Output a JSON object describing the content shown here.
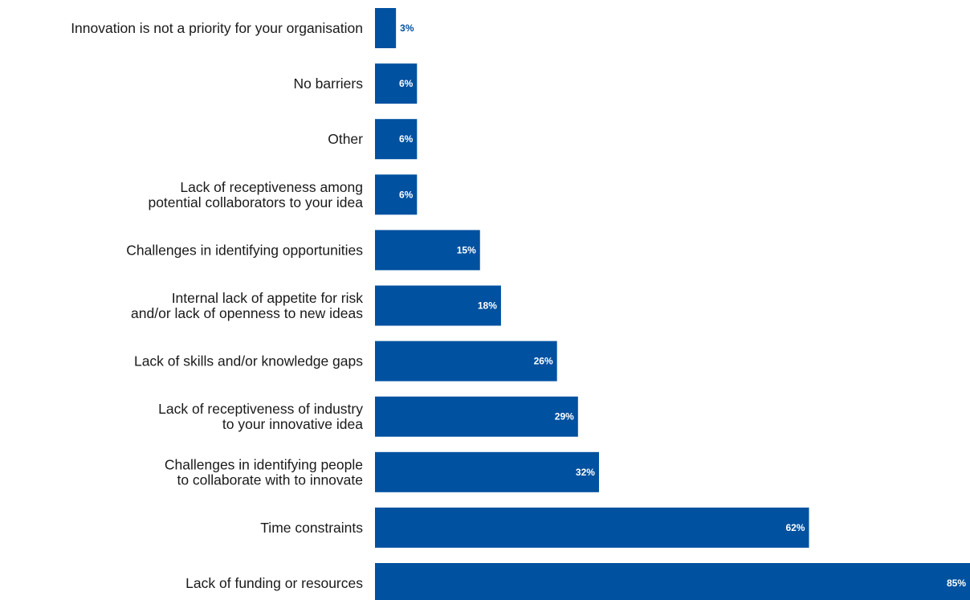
{
  "chart_data": {
    "type": "bar",
    "orientation": "horizontal",
    "title": "",
    "xlabel": "",
    "ylabel": "",
    "xlim": [
      0,
      85
    ],
    "grid": false,
    "legend": "none",
    "bar_color": "#0051A0",
    "value_label_color_inside": "#ffffff",
    "value_label_color_outside": "#0051A0",
    "categories": [
      [
        "Innovation is not a priority for your organisation"
      ],
      [
        "No barriers"
      ],
      [
        "Other"
      ],
      [
        "Lack of receptiveness among",
        "potential collaborators to your idea"
      ],
      [
        "Challenges in identifying opportunities"
      ],
      [
        "Internal lack of appetite for risk",
        "and/or lack of openness to new ideas"
      ],
      [
        "Lack of skills and/or knowledge gaps"
      ],
      [
        "Lack of receptiveness of industry",
        "to your innovative idea"
      ],
      [
        "Challenges in identifying people",
        "to collaborate with to innovate"
      ],
      [
        "Time constraints"
      ],
      [
        "Lack of funding or resources"
      ]
    ],
    "values": [
      3,
      6,
      6,
      6,
      15,
      18,
      26,
      29,
      32,
      62,
      85
    ],
    "value_labels": [
      "3%",
      "6%",
      "6%",
      "6%",
      "15%",
      "18%",
      "26%",
      "29%",
      "32%",
      "62%",
      "85%"
    ]
  }
}
